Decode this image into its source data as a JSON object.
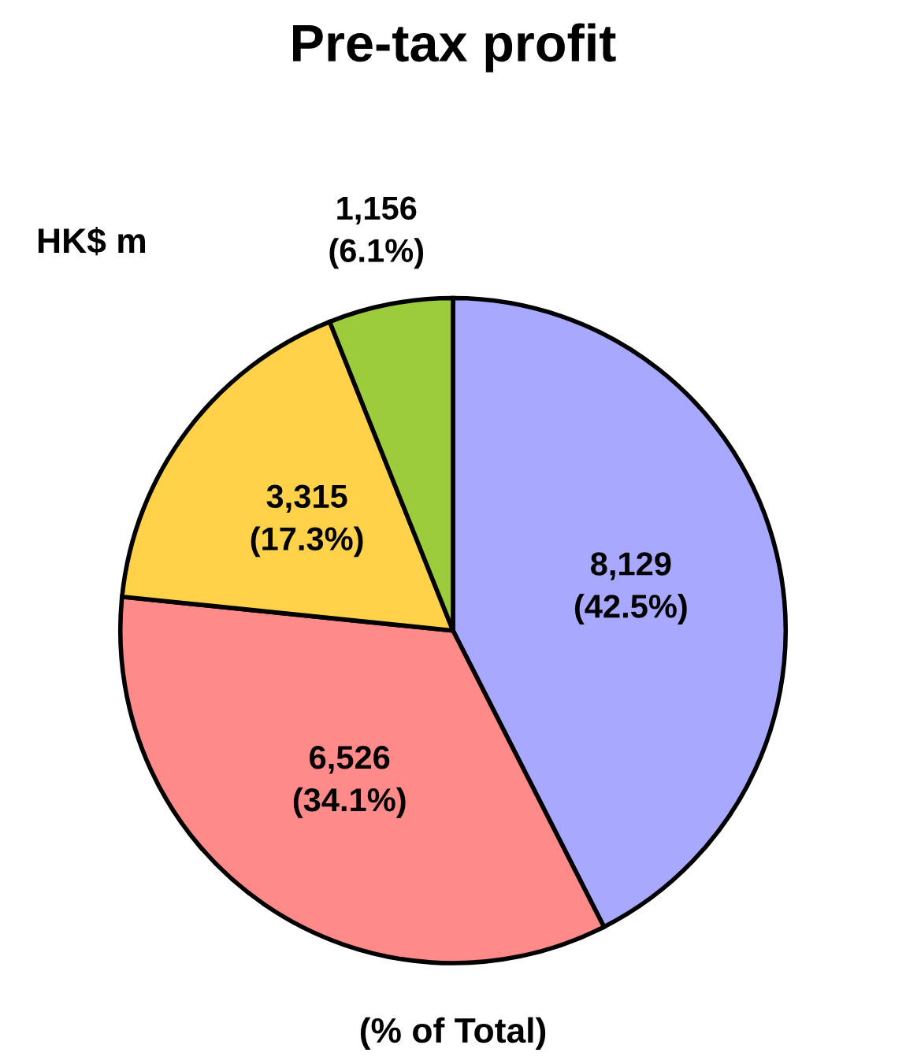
{
  "chart_data": {
    "type": "pie",
    "title": "Pre-tax profit",
    "categories": [
      null,
      null,
      null,
      null
    ],
    "values": [
      8129,
      6526,
      3315,
      1156
    ],
    "colors": [
      "#a8a8ff",
      "#ff8a8a",
      "#ffd24a",
      "#9ccc3c"
    ],
    "value_labels": [
      "8,129\n(42.5%)",
      "6,526\n(34.1%)",
      "3,315\n(17.3%)",
      "1,156\n(6.1%)"
    ],
    "annotations": [
      "HK$ m",
      "(% of Total)"
    ]
  }
}
